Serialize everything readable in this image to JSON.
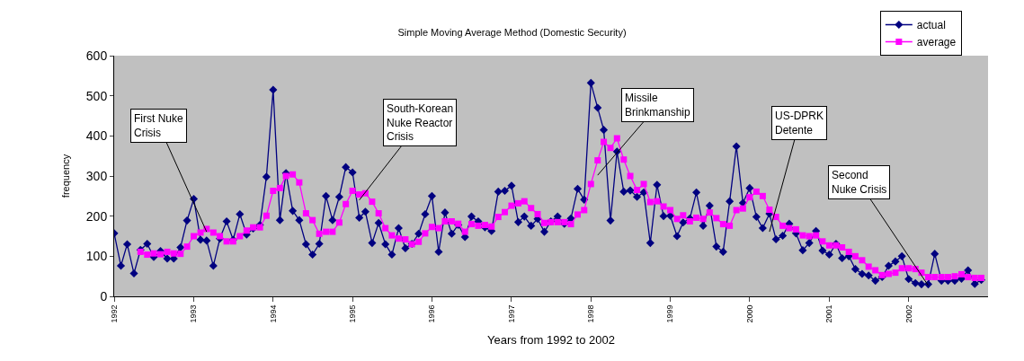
{
  "chart_data": {
    "type": "line",
    "title": "Simple Moving Average Method (Domestic Security)",
    "xlabel": "Years from 1992 to 2002",
    "ylabel": "frequency",
    "x": [
      "1992-01",
      "1992-02",
      "1992-03",
      "1992-04",
      "1992-05",
      "1992-06",
      "1992-07",
      "1992-08",
      "1992-09",
      "1992-10",
      "1992-11",
      "1992-12",
      "1993-01",
      "1993-02",
      "1993-03",
      "1993-04",
      "1993-05",
      "1993-06",
      "1993-07",
      "1993-08",
      "1993-09",
      "1993-10",
      "1993-11",
      "1993-12",
      "1994-01",
      "1994-02",
      "1994-03",
      "1994-04",
      "1994-05",
      "1994-06",
      "1994-07",
      "1994-08",
      "1994-09",
      "1994-10",
      "1994-11",
      "1994-12",
      "1995-01",
      "1995-02",
      "1995-03",
      "1995-04",
      "1995-05",
      "1995-06",
      "1995-07",
      "1995-08",
      "1995-09",
      "1995-10",
      "1995-11",
      "1995-12",
      "1996-01",
      "1996-02",
      "1996-03",
      "1996-04",
      "1996-05",
      "1996-06",
      "1996-07",
      "1996-08",
      "1996-09",
      "1996-10",
      "1996-11",
      "1996-12",
      "1997-01",
      "1997-02",
      "1997-03",
      "1997-04",
      "1997-05",
      "1997-06",
      "1997-07",
      "1997-08",
      "1997-09",
      "1997-10",
      "1997-11",
      "1997-12",
      "1998-01",
      "1998-02",
      "1998-03",
      "1998-04",
      "1998-05",
      "1998-06",
      "1998-07",
      "1998-08",
      "1998-09",
      "1998-10",
      "1998-11",
      "1998-12",
      "1999-01",
      "1999-02",
      "1999-03",
      "1999-04",
      "1999-05",
      "1999-06",
      "1999-07",
      "1999-08",
      "1999-09",
      "1999-10",
      "1999-11",
      "1999-12",
      "2000-01",
      "2000-02",
      "2000-03",
      "2000-04",
      "2000-05",
      "2000-06",
      "2000-07",
      "2000-08",
      "2000-09",
      "2000-10",
      "2000-11",
      "2000-12",
      "2001-01",
      "2001-02",
      "2001-03",
      "2001-04",
      "2001-05",
      "2001-06",
      "2001-07",
      "2001-08",
      "2001-09",
      "2001-10",
      "2001-11",
      "2001-12",
      "2002-01",
      "2002-02",
      "2002-03",
      "2002-04",
      "2002-05",
      "2002-06",
      "2002-07",
      "2002-08",
      "2002-09",
      "2002-10",
      "2002-11",
      "2002-12"
    ],
    "xlim": [
      "1992-01",
      "2003-01"
    ],
    "xticks": [
      {
        "value": "1992-01",
        "label": "1992"
      },
      {
        "value": "1993-01",
        "label": "1993"
      },
      {
        "value": "1994-01",
        "label": "1994"
      },
      {
        "value": "1995-01",
        "label": "1995"
      },
      {
        "value": "1996-01",
        "label": "1996"
      },
      {
        "value": "1997-01",
        "label": "1997"
      },
      {
        "value": "1998-01",
        "label": "1998"
      },
      {
        "value": "1999-01",
        "label": "1999"
      },
      {
        "value": "2000-01",
        "label": "2000"
      },
      {
        "value": "2001-01",
        "label": "2001"
      },
      {
        "value": "2002-01",
        "label": "2002"
      }
    ],
    "ylim": [
      0,
      600
    ],
    "yticks": [
      0,
      100,
      200,
      300,
      400,
      500,
      600
    ],
    "grid": false,
    "legend": "top right",
    "series": [
      {
        "name": "actual",
        "color": "#000080",
        "marker": "diamond",
        "values": [
          157,
          76,
          130,
          57,
          116,
          131,
          98,
          113,
          94,
          94,
          122,
          189,
          243,
          141,
          139,
          76,
          144,
          187,
          141,
          205,
          154,
          169,
          178,
          298,
          515,
          190,
          307,
          213,
          190,
          130,
          104,
          131,
          250,
          190,
          248,
          322,
          309,
          196,
          211,
          133,
          183,
          130,
          104,
          170,
          120,
          131,
          156,
          205,
          250,
          111,
          209,
          156,
          178,
          148,
          199,
          187,
          172,
          163,
          261,
          263,
          276,
          185,
          199,
          176,
          193,
          161,
          187,
          199,
          181,
          194,
          268,
          241,
          532,
          470,
          415,
          189,
          361,
          261,
          264,
          248,
          259,
          133,
          278,
          200,
          201,
          150,
          184,
          194,
          259,
          176,
          226,
          124,
          111,
          237,
          374,
          233,
          270,
          198,
          170,
          206,
          142,
          151,
          181,
          157,
          115,
          133,
          163,
          114,
          104,
          131,
          95,
          100,
          68,
          56,
          52,
          39,
          48,
          76,
          87,
          100,
          43,
          33,
          30,
          30,
          106,
          39,
          39,
          39,
          44,
          65,
          31,
          41
        ]
      },
      {
        "name": "average",
        "color": "#ff00ff",
        "marker": "square",
        "values": [
          null,
          null,
          null,
          null,
          111,
          104,
          107,
          105,
          111,
          107,
          106,
          124,
          150,
          159,
          168,
          159,
          150,
          137,
          137,
          150,
          164,
          172,
          172,
          201,
          263,
          270,
          300,
          304,
          284,
          207,
          190,
          156,
          161,
          161,
          184,
          230,
          263,
          254,
          257,
          236,
          207,
          170,
          152,
          144,
          142,
          130,
          136,
          157,
          173,
          170,
          187,
          187,
          181,
          161,
          180,
          176,
          178,
          174,
          198,
          210,
          226,
          232,
          237,
          220,
          205,
          183,
          185,
          185,
          185,
          180,
          204,
          215,
          280,
          339,
          385,
          370,
          394,
          341,
          300,
          265,
          280,
          235,
          237,
          224,
          215,
          193,
          202,
          187,
          196,
          193,
          209,
          195,
          180,
          176,
          215,
          219,
          247,
          261,
          250,
          216,
          198,
          176,
          170,
          167,
          152,
          150,
          152,
          137,
          127,
          127,
          122,
          111,
          100,
          90,
          74,
          65,
          53,
          56,
          59,
          70,
          70,
          68,
          59,
          48,
          48,
          48,
          48,
          50,
          55,
          48,
          46,
          46
        ]
      }
    ],
    "annotations": [
      {
        "text": "First Nuke\nCrisis",
        "x": "1993-03",
        "y": 161
      },
      {
        "text": "South-Korean\nNuke Reactor\nCrisis",
        "x": "1995-02",
        "y": 240
      },
      {
        "text": "Missile\nBrinkmanship",
        "x": "1998-02",
        "y": 302
      },
      {
        "text": "US-DPRK\nDetente",
        "x": "2000-04",
        "y": 161
      },
      {
        "text": "Second\nNuke Crisis",
        "x": "2002-04",
        "y": 27
      }
    ]
  }
}
